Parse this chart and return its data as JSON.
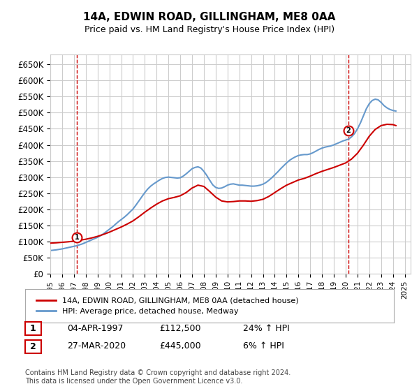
{
  "title": "14A, EDWIN ROAD, GILLINGHAM, ME8 0AA",
  "subtitle": "Price paid vs. HM Land Registry's House Price Index (HPI)",
  "ylabel": "",
  "xlim_start": 1995.0,
  "xlim_end": 2025.5,
  "ylim": [
    0,
    680000
  ],
  "yticks": [
    0,
    50000,
    100000,
    150000,
    200000,
    250000,
    300000,
    350000,
    400000,
    450000,
    500000,
    550000,
    600000,
    650000
  ],
  "ytick_labels": [
    "£0",
    "£50K",
    "£100K",
    "£150K",
    "£200K",
    "£250K",
    "£300K",
    "£350K",
    "£400K",
    "£450K",
    "£500K",
    "£550K",
    "£600K",
    "£650K"
  ],
  "sale1_x": 1997.26,
  "sale1_y": 112500,
  "sale1_label": "1",
  "sale2_x": 2020.24,
  "sale2_y": 445000,
  "sale2_label": "2",
  "line_color_property": "#cc0000",
  "line_color_hpi": "#6699cc",
  "vline_color": "#cc0000",
  "background_color": "#ffffff",
  "grid_color": "#cccccc",
  "legend_label_property": "14A, EDWIN ROAD, GILLINGHAM, ME8 0AA (detached house)",
  "legend_label_hpi": "HPI: Average price, detached house, Medway",
  "table_row1": [
    "1",
    "04-APR-1997",
    "£112,500",
    "24% ↑ HPI"
  ],
  "table_row2": [
    "2",
    "27-MAR-2020",
    "£445,000",
    "6% ↑ HPI"
  ],
  "footnote": "Contains HM Land Registry data © Crown copyright and database right 2024.\nThis data is licensed under the Open Government Licence v3.0.",
  "hpi_years": [
    1995.0,
    1995.25,
    1995.5,
    1995.75,
    1996.0,
    1996.25,
    1996.5,
    1996.75,
    1997.0,
    1997.25,
    1997.5,
    1997.75,
    1998.0,
    1998.25,
    1998.5,
    1998.75,
    1999.0,
    1999.25,
    1999.5,
    1999.75,
    2000.0,
    2000.25,
    2000.5,
    2000.75,
    2001.0,
    2001.25,
    2001.5,
    2001.75,
    2002.0,
    2002.25,
    2002.5,
    2002.75,
    2003.0,
    2003.25,
    2003.5,
    2003.75,
    2004.0,
    2004.25,
    2004.5,
    2004.75,
    2005.0,
    2005.25,
    2005.5,
    2005.75,
    2006.0,
    2006.25,
    2006.5,
    2006.75,
    2007.0,
    2007.25,
    2007.5,
    2007.75,
    2008.0,
    2008.25,
    2008.5,
    2008.75,
    2009.0,
    2009.25,
    2009.5,
    2009.75,
    2010.0,
    2010.25,
    2010.5,
    2010.75,
    2011.0,
    2011.25,
    2011.5,
    2011.75,
    2012.0,
    2012.25,
    2012.5,
    2012.75,
    2013.0,
    2013.25,
    2013.5,
    2013.75,
    2014.0,
    2014.25,
    2014.5,
    2014.75,
    2015.0,
    2015.25,
    2015.5,
    2015.75,
    2016.0,
    2016.25,
    2016.5,
    2016.75,
    2017.0,
    2017.25,
    2017.5,
    2017.75,
    2018.0,
    2018.25,
    2018.5,
    2018.75,
    2019.0,
    2019.25,
    2019.5,
    2019.75,
    2020.0,
    2020.25,
    2020.5,
    2020.75,
    2021.0,
    2021.25,
    2021.5,
    2021.75,
    2022.0,
    2022.25,
    2022.5,
    2022.75,
    2023.0,
    2023.25,
    2023.5,
    2023.75,
    2024.0,
    2024.25
  ],
  "hpi_values": [
    72000,
    73000,
    74000,
    75500,
    77000,
    79000,
    81000,
    83000,
    85000,
    87000,
    90000,
    93000,
    97000,
    101000,
    105000,
    109000,
    113000,
    118000,
    124000,
    131000,
    138000,
    145000,
    153000,
    161000,
    168000,
    175000,
    183000,
    192000,
    201000,
    213000,
    226000,
    239000,
    252000,
    263000,
    272000,
    279000,
    285000,
    291000,
    296000,
    299000,
    300000,
    299000,
    298000,
    297000,
    298000,
    303000,
    310000,
    318000,
    326000,
    330000,
    332000,
    328000,
    318000,
    305000,
    290000,
    276000,
    268000,
    265000,
    266000,
    270000,
    275000,
    278000,
    279000,
    277000,
    275000,
    275000,
    274000,
    273000,
    272000,
    272000,
    273000,
    275000,
    278000,
    283000,
    290000,
    298000,
    307000,
    316000,
    326000,
    335000,
    344000,
    352000,
    358000,
    363000,
    367000,
    369000,
    370000,
    370000,
    372000,
    376000,
    381000,
    386000,
    390000,
    393000,
    395000,
    397000,
    400000,
    404000,
    408000,
    412000,
    415000,
    418000,
    425000,
    435000,
    450000,
    468000,
    490000,
    512000,
    528000,
    538000,
    542000,
    540000,
    532000,
    522000,
    515000,
    510000,
    507000,
    505000
  ],
  "prop_years": [
    1995.0,
    1995.5,
    1996.0,
    1996.5,
    1997.0,
    1997.5,
    1998.0,
    1998.5,
    1999.0,
    1999.5,
    2000.0,
    2000.5,
    2001.0,
    2001.5,
    2002.0,
    2002.5,
    2003.0,
    2003.5,
    2004.0,
    2004.5,
    2005.0,
    2005.5,
    2006.0,
    2006.5,
    2007.0,
    2007.5,
    2008.0,
    2008.5,
    2009.0,
    2009.5,
    2010.0,
    2010.5,
    2011.0,
    2011.5,
    2012.0,
    2012.5,
    2013.0,
    2013.5,
    2014.0,
    2014.5,
    2015.0,
    2015.5,
    2016.0,
    2016.5,
    2017.0,
    2017.5,
    2018.0,
    2018.5,
    2019.0,
    2019.5,
    2020.0,
    2020.5,
    2021.0,
    2021.5,
    2022.0,
    2022.5,
    2023.0,
    2023.5,
    2024.0,
    2024.25
  ],
  "prop_values": [
    95000,
    96000,
    97500,
    99000,
    101000,
    104000,
    107000,
    111000,
    116000,
    122000,
    129000,
    137000,
    145000,
    154000,
    164000,
    177000,
    191000,
    204000,
    216000,
    226000,
    233000,
    237000,
    242000,
    252000,
    266000,
    275000,
    271000,
    255000,
    238000,
    226000,
    223000,
    224000,
    226000,
    226000,
    225000,
    227000,
    231000,
    240000,
    252000,
    264000,
    275000,
    283000,
    291000,
    296000,
    303000,
    311000,
    318000,
    324000,
    330000,
    337000,
    344000,
    356000,
    374000,
    399000,
    427000,
    448000,
    460000,
    464000,
    463000,
    460000
  ]
}
